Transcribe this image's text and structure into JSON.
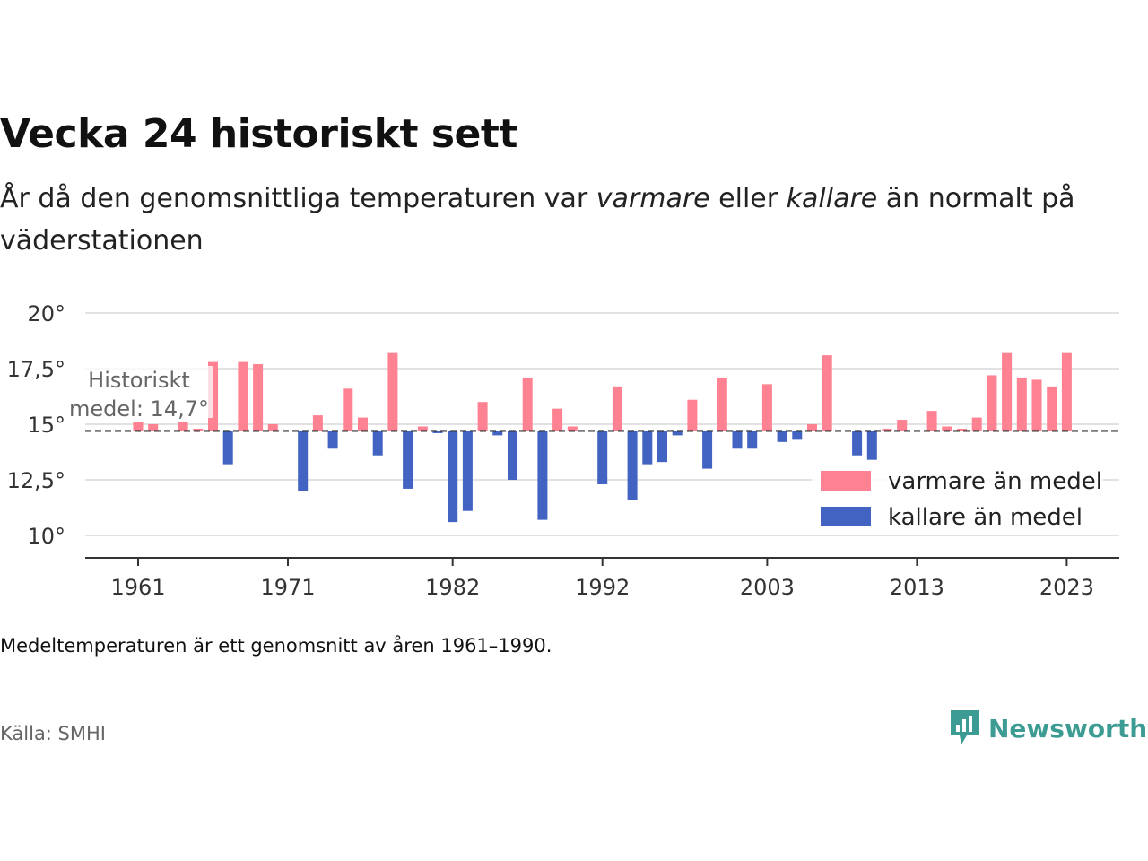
{
  "header": {
    "title": "Vecka 24 historiskt sett",
    "subtitle_parts": [
      "År då den genomsnittliga temperaturen var ",
      "varmare",
      " eller ",
      "kallare",
      " än normalt på väderstationen"
    ]
  },
  "footer": {
    "note": "Medeltemperaturen är ett genomsnitt av åren 1961–1990.",
    "source": "Källa: SMHI",
    "brand": "Newsworthy"
  },
  "colors": {
    "warm": "#ff8292",
    "cold": "#4263c1",
    "brand": "#3c9b93"
  },
  "chart_data": {
    "type": "bar",
    "baseline": 14.7,
    "baseline_label": [
      "Historiskt",
      "medel: 14,7°"
    ],
    "ylim": [
      9,
      20.5
    ],
    "yticks": [
      10,
      12.5,
      15,
      17.5,
      20
    ],
    "ytick_labels": [
      "10°",
      "12,5°",
      "15°",
      "17,5°",
      "20°"
    ],
    "xticks": [
      1961,
      1971,
      1982,
      1992,
      2003,
      2013,
      2023
    ],
    "grid": true,
    "legend": {
      "position": "bottom-right",
      "items": [
        {
          "label": "varmare än medel",
          "color": "#ff8292"
        },
        {
          "label": "kallare än medel",
          "color": "#4263c1"
        }
      ]
    },
    "x": [
      1961,
      1962,
      1963,
      1964,
      1965,
      1966,
      1967,
      1968,
      1969,
      1970,
      1971,
      1972,
      1973,
      1974,
      1975,
      1976,
      1977,
      1978,
      1979,
      1980,
      1981,
      1982,
      1983,
      1984,
      1985,
      1986,
      1987,
      1988,
      1989,
      1990,
      1991,
      1992,
      1993,
      1994,
      1995,
      1996,
      1997,
      1998,
      1999,
      2000,
      2001,
      2002,
      2003,
      2004,
      2005,
      2006,
      2007,
      2008,
      2009,
      2010,
      2011,
      2012,
      2013,
      2014,
      2015,
      2016,
      2017,
      2018,
      2019,
      2020,
      2021,
      2022,
      2023
    ],
    "values": [
      15.1,
      15.0,
      14.7,
      15.1,
      14.8,
      17.8,
      13.2,
      17.8,
      17.7,
      15.0,
      14.7,
      12.0,
      15.4,
      13.9,
      16.6,
      15.3,
      13.6,
      18.2,
      12.1,
      14.9,
      14.6,
      10.6,
      11.1,
      16.0,
      14.5,
      12.5,
      17.1,
      10.7,
      15.7,
      14.9,
      14.7,
      12.3,
      16.7,
      11.6,
      13.2,
      13.3,
      14.5,
      16.1,
      13.0,
      17.1,
      13.9,
      13.9,
      16.8,
      14.2,
      14.3,
      15.0,
      18.1,
      14.7,
      13.6,
      13.4,
      14.8,
      15.2,
      14.7,
      15.6,
      14.9,
      14.8,
      15.3,
      17.2,
      18.2,
      17.1,
      17.0,
      16.7,
      18.2
    ]
  }
}
